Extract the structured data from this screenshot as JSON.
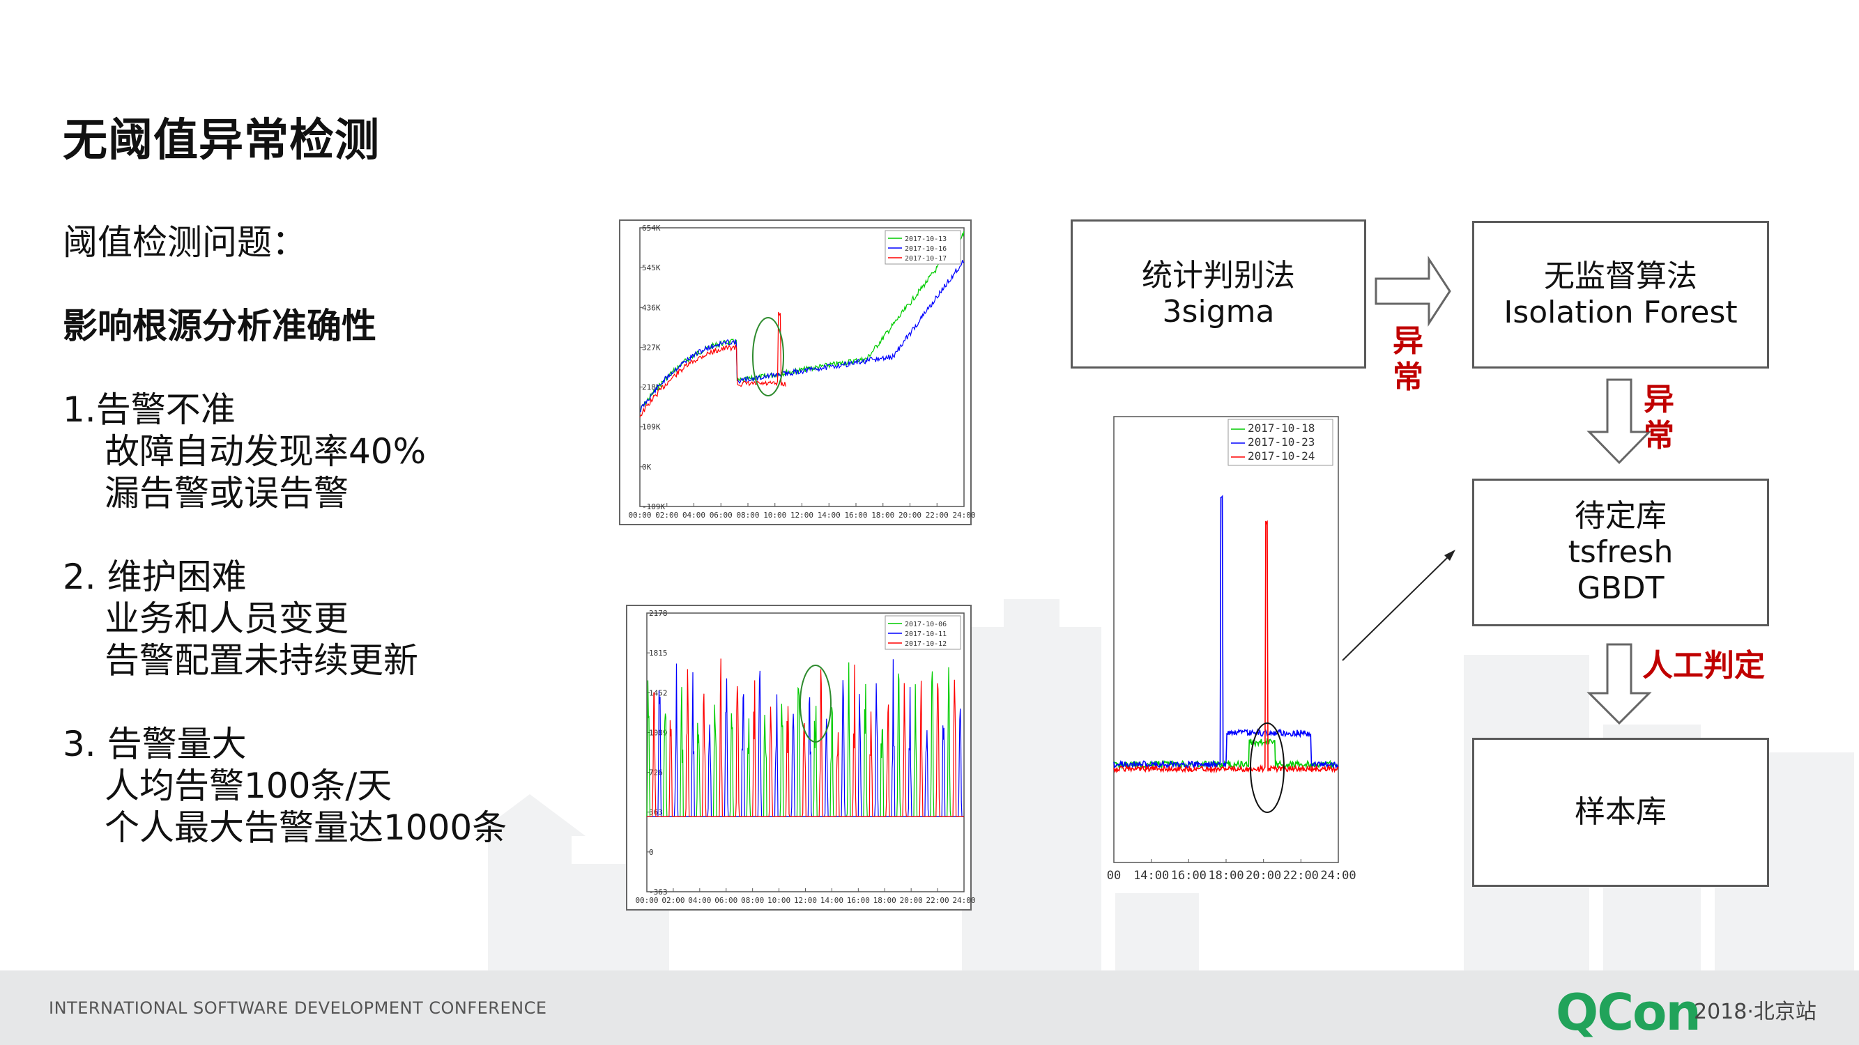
{
  "slide": {
    "title": "无阈值异常检测",
    "lines": [
      "阈值检测问题：",
      "影响根源分析准确性",
      "1.告警不准",
      "故障自动发现率40%",
      "漏告警或误告警",
      "2. 维护困难",
      "业务和人员变更",
      "告警配置未持续更新",
      "3. 告警量大",
      "人均告警100条/天",
      "个人最大告警量达1000条"
    ]
  },
  "flow": {
    "box1": [
      "统计判别法",
      "3sigma"
    ],
    "box2": [
      "无监督算法",
      "Isolation Forest"
    ],
    "box3": [
      "待定库",
      "tsfresh",
      "GBDT"
    ],
    "box4": [
      "样本库"
    ],
    "label_anomaly": "异常",
    "label_manual": "人工判定",
    "accent_color": "#c00000"
  },
  "chart_data": [
    {
      "type": "line",
      "yticks": [
        "654K",
        "545K",
        "436K",
        "327K",
        "218K",
        "109K",
        "0K",
        "-109K"
      ],
      "xticks": [
        "00:00",
        "02:00",
        "04:00",
        "06:00",
        "08:00",
        "10:00",
        "12:00",
        "14:00",
        "16:00",
        "18:00",
        "20:00",
        "22:00",
        "24:00"
      ],
      "legend": [
        "2017-10-13",
        "2017-10-16",
        "2017-10-17"
      ],
      "series_colors": [
        "#00cc00",
        "#0000ff",
        "#ff0000"
      ]
    },
    {
      "type": "line",
      "yticks": [
        "2178",
        "1815",
        "1452",
        "1089",
        "726",
        "363",
        "0",
        "-363"
      ],
      "xticks": [
        "00:00",
        "02:00",
        "04:00",
        "06:00",
        "08:00",
        "10:00",
        "12:00",
        "14:00",
        "16:00",
        "18:00",
        "20:00",
        "22:00",
        "24:00"
      ],
      "legend": [
        "2017-10-06",
        "2017-10-11",
        "2017-10-12"
      ],
      "series_colors": [
        "#00cc00",
        "#0000ff",
        "#ff0000"
      ]
    },
    {
      "type": "line",
      "xticks": [
        "00",
        "14:00",
        "16:00",
        "18:00",
        "20:00",
        "22:00",
        "24:00"
      ],
      "legend": [
        "2017-10-18",
        "2017-10-23",
        "2017-10-24"
      ],
      "series_colors": [
        "#00cc00",
        "#0000ff",
        "#ff0000"
      ]
    }
  ],
  "footer": {
    "conference": "INTERNATIONAL SOFTWARE DEVELOPMENT CONFERENCE",
    "brand": "QCon",
    "edition": "2018·北京站"
  }
}
